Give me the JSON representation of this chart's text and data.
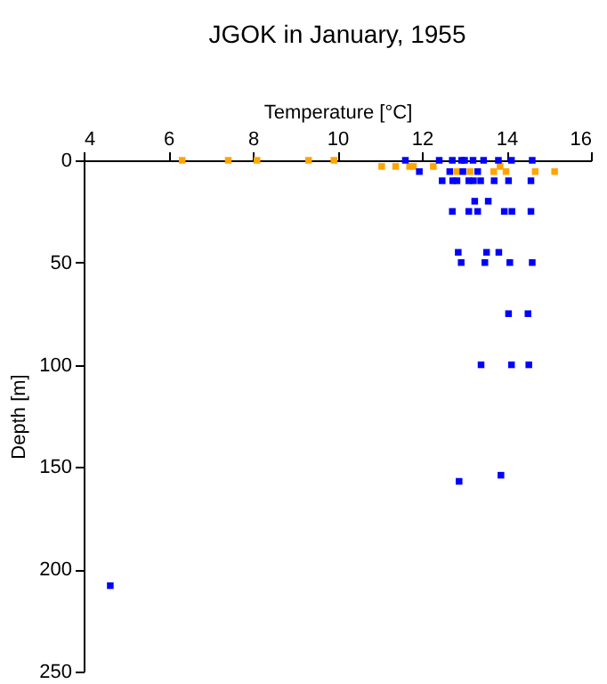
{
  "chart_data": {
    "type": "scatter",
    "title": "JGOK in January, 1955",
    "xlabel": "Temperature [°C]",
    "ylabel": "Depth [m]",
    "xlim": [
      4,
      16
    ],
    "xticks": [
      4,
      6,
      8,
      10,
      12,
      14,
      16
    ],
    "ylim": [
      250,
      0
    ],
    "yticks": [
      0,
      50,
      100,
      150,
      200,
      250
    ],
    "grid": false,
    "legend": false,
    "marker": "square",
    "series": [
      {
        "color": "#ffa500",
        "x": [
          6.33,
          7.42,
          8.1,
          9.32,
          9.92,
          11.05,
          11.38,
          11.71,
          11.8,
          12.27,
          13.85,
          12.83,
          13.14,
          13.7,
          13.99,
          14.68,
          15.14
        ],
        "values": [
          0,
          0,
          0,
          0,
          0,
          3,
          3,
          3,
          3,
          3,
          3,
          5.5,
          5.5,
          5.5,
          5.5,
          5.5,
          5.5
        ]
      },
      {
        "color": "#0000ff",
        "x": [
          11.61,
          12.41,
          12.72,
          12.94,
          13.01,
          13.21,
          13.46,
          13.81,
          14.12,
          14.61,
          11.94,
          12.66,
          12.97,
          13.32,
          12.48,
          12.73,
          12.83,
          13.11,
          13.22,
          13.39,
          13.71,
          14.05,
          14.58,
          13.25,
          13.57,
          12.72,
          13.11,
          13.32,
          13.95,
          14.13,
          14.58,
          12.86,
          13.53,
          13.82,
          12.93,
          13.49,
          14.08,
          14.61,
          14.05,
          14.51,
          13.4,
          14.12,
          14.53,
          13.87,
          12.88,
          4.63
        ],
        "values": [
          0,
          0,
          0,
          0,
          0,
          0,
          0,
          0,
          0,
          0,
          5.5,
          5.5,
          5.5,
          5.5,
          10,
          10,
          10,
          10,
          10,
          10,
          10,
          10,
          10,
          20,
          20,
          25,
          25,
          25,
          25,
          25,
          25,
          45,
          45,
          45,
          50,
          50,
          50,
          50,
          75,
          75,
          100,
          100,
          100,
          154,
          157,
          208
        ]
      }
    ]
  }
}
